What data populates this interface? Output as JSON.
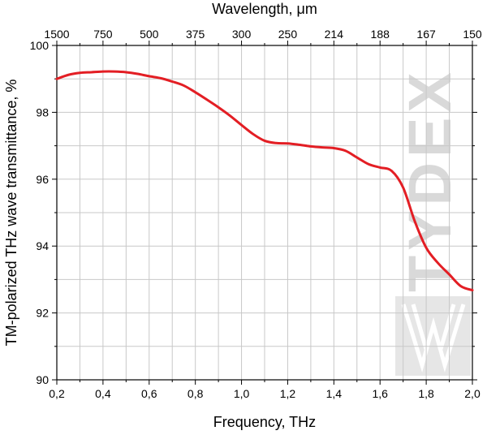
{
  "chart_data": {
    "type": "line",
    "title": "",
    "xlabel": "Frequency, THz",
    "ylabel": "TM-polarized THz wave transmittance, %",
    "top_axis_label": "Wavelength, μm",
    "xlim": [
      0.2,
      2.0
    ],
    "ylim": [
      90,
      100
    ],
    "x_ticks": [
      0.2,
      0.4,
      0.6,
      0.8,
      1.0,
      1.2,
      1.4,
      1.6,
      1.8,
      2.0
    ],
    "x_tick_labels": [
      "0,2",
      "0,4",
      "0,6",
      "0,8",
      "1,0",
      "1,2",
      "1,4",
      "1,6",
      "1,8",
      "2,0"
    ],
    "y_ticks": [
      90,
      92,
      94,
      96,
      98,
      100
    ],
    "y_tick_labels": [
      "90",
      "92",
      "94",
      "96",
      "98",
      "100"
    ],
    "top_ticks": [
      0.2,
      0.4,
      0.6,
      0.8,
      1.0,
      1.2,
      1.4,
      1.6,
      1.8,
      2.0
    ],
    "top_tick_labels": [
      "1500",
      "750",
      "500",
      "375",
      "300",
      "250",
      "214",
      "188",
      "167",
      "150"
    ],
    "grid": true,
    "legend": "none",
    "series_color": "#e31e24",
    "series": [
      {
        "x": [
          0.2,
          0.25,
          0.3,
          0.35,
          0.4,
          0.45,
          0.5,
          0.55,
          0.6,
          0.65,
          0.7,
          0.75,
          0.8,
          0.85,
          0.9,
          0.95,
          1.0,
          1.05,
          1.1,
          1.15,
          1.2,
          1.25,
          1.3,
          1.35,
          1.4,
          1.45,
          1.5,
          1.55,
          1.6,
          1.65,
          1.7,
          1.75,
          1.8,
          1.85,
          1.9,
          1.95,
          2.0
        ],
        "y": [
          99.0,
          99.12,
          99.18,
          99.2,
          99.22,
          99.22,
          99.2,
          99.15,
          99.08,
          99.02,
          98.92,
          98.8,
          98.6,
          98.38,
          98.15,
          97.9,
          97.62,
          97.35,
          97.15,
          97.08,
          97.07,
          97.03,
          96.98,
          96.95,
          96.93,
          96.85,
          96.65,
          96.45,
          96.35,
          96.25,
          95.75,
          94.75,
          93.95,
          93.5,
          93.15,
          92.8,
          92.68
        ]
      }
    ]
  },
  "watermark": {
    "text": "TYDEX",
    "color": "#d9d9d9"
  }
}
